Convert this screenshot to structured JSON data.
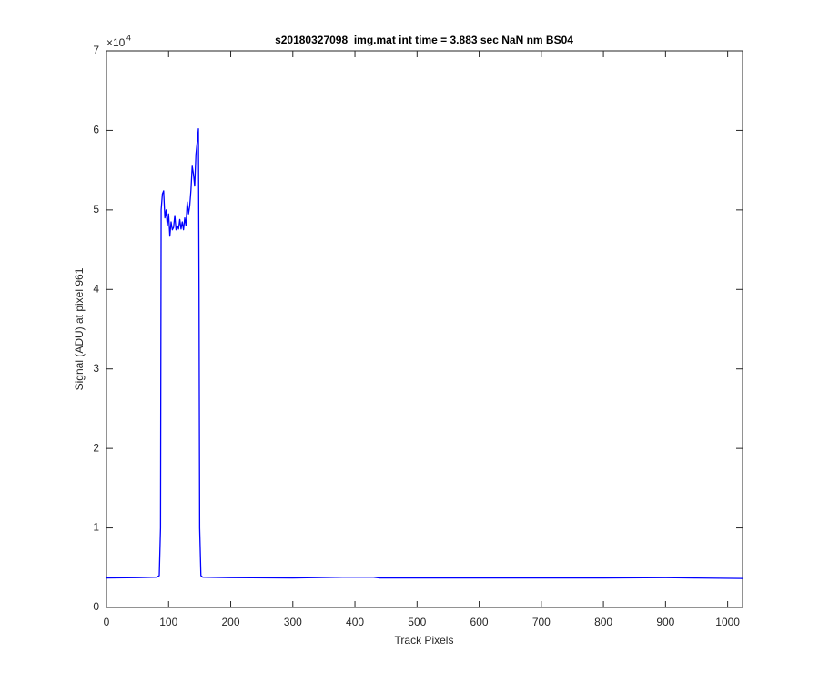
{
  "chart_data": {
    "type": "line",
    "title": "s20180327098_img.mat int time = 3.883 sec  NaN nm BS04",
    "x_label": "Track Pixels",
    "y_label": "Signal (ADU) at pixel 961",
    "y_exponent": {
      "base": "×10",
      "power": "4"
    },
    "xlim": [
      0,
      1024
    ],
    "xticks": [
      0,
      100,
      200,
      300,
      400,
      500,
      600,
      700,
      800,
      900,
      1000
    ],
    "ylim": [
      0,
      70000
    ],
    "yticks": [
      {
        "value": 0,
        "label": "0"
      },
      {
        "value": 10000,
        "label": "1"
      },
      {
        "value": 20000,
        "label": "2"
      },
      {
        "value": 30000,
        "label": "3"
      },
      {
        "value": 40000,
        "label": "4"
      },
      {
        "value": 50000,
        "label": "5"
      },
      {
        "value": 60000,
        "label": "6"
      },
      {
        "value": 70000,
        "label": "7"
      }
    ],
    "series": [
      {
        "color": "#0000ff",
        "x": [
          0,
          50,
          80,
          85,
          87,
          88,
          90,
          92,
          94,
          96,
          98,
          100,
          102,
          104,
          106,
          108,
          110,
          112,
          114,
          116,
          118,
          120,
          122,
          124,
          126,
          128,
          130,
          132,
          134,
          136,
          138,
          140,
          142,
          144,
          146,
          148,
          149,
          150,
          152,
          155,
          200,
          300,
          380,
          430,
          440,
          500,
          600,
          700,
          800,
          900,
          950,
          1024
        ],
        "values": [
          3700,
          3750,
          3800,
          4000,
          10000,
          50000,
          52000,
          52400,
          49000,
          50000,
          48000,
          49500,
          46700,
          48500,
          47500,
          47800,
          49300,
          47500,
          48000,
          47600,
          48800,
          47600,
          48500,
          47500,
          49000,
          48000,
          51000,
          49500,
          50500,
          52500,
          55500,
          54500,
          53000,
          57000,
          58500,
          60200,
          40000,
          10000,
          4000,
          3800,
          3750,
          3700,
          3800,
          3800,
          3700,
          3700,
          3700,
          3700,
          3700,
          3750,
          3700,
          3650
        ]
      }
    ]
  }
}
